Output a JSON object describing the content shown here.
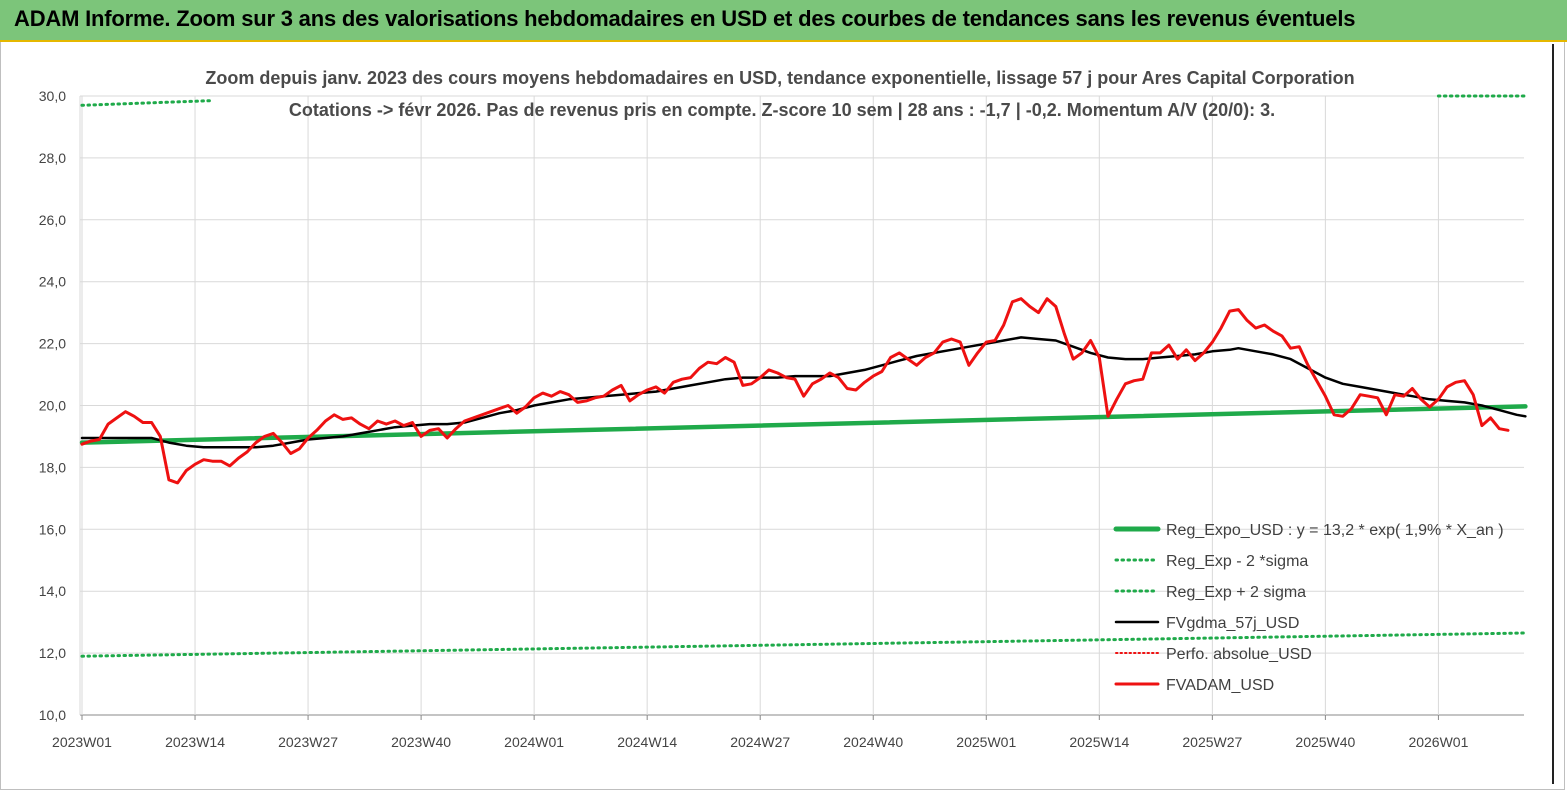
{
  "header": {
    "title": "ADAM Informe. Zoom sur 3 ans des valorisations hebdomadaires en USD et des courbes de tendances sans les revenus éventuels"
  },
  "chart_data": {
    "type": "line",
    "title_line1": "Zoom depuis janv.  2023 des cours moyens  hebdomadaires en USD, tendance exponentielle, lissage 57  j pour Ares Capital Corporation",
    "title_line2": "Cotations -> févr 2026.  Pas de revenus pris en compte. Z-score 10 sem  | 28 ans : -1,7  | -0,2. Momentum A/V (20/0): 3.",
    "xlabel": "",
    "ylabel": "",
    "ylim": [
      10,
      30
    ],
    "yticks": [
      "10,0",
      "12,0",
      "14,0",
      "16,0",
      "18,0",
      "20,0",
      "22,0",
      "24,0",
      "26,0",
      "28,0",
      "30,0"
    ],
    "xtick_labels": [
      "2023W01",
      "2023W14",
      "2023W27",
      "2023W40",
      "2024W01",
      "2024W14",
      "2024W27",
      "2024W40",
      "2025W01",
      "2025W14",
      "2025W27",
      "2025W40",
      "2026W01"
    ],
    "xtick_index": [
      0,
      13,
      26,
      39,
      52,
      65,
      78,
      91,
      104,
      117,
      130,
      143,
      156
    ],
    "n_weeks": 167,
    "grid": true,
    "legend_position": "bottom-right",
    "colors": {
      "fvadam": "#ee1111",
      "gdma": "#000000",
      "reg": "#1faa4a",
      "sigma": "#1faa4a",
      "perfo": "#ee1111",
      "grid": "#d9d9d9",
      "axis": "#888888"
    },
    "series": [
      {
        "name": "Reg_Expo_USD : y = 13,2 * exp( 1,9% *  X_an )",
        "style": "thick",
        "points": [
          [
            0,
            18.8
          ],
          [
            166,
            19.97
          ]
        ]
      },
      {
        "name": "Reg_Exp - 2 *sigma",
        "style": "dotted",
        "points": [
          [
            0,
            11.9
          ],
          [
            166,
            12.65
          ]
        ]
      },
      {
        "name": "Reg_Exp + 2 sigma",
        "style": "dotted",
        "points": [
          [
            0,
            29.7
          ],
          [
            15,
            29.85
          ],
          [
            156,
            30.0
          ],
          [
            166,
            30.0
          ]
        ]
      },
      {
        "name": "FVgdma_57j_USD",
        "style": "solid",
        "points": [
          [
            0,
            18.95
          ],
          [
            3,
            18.95
          ],
          [
            6,
            18.95
          ],
          [
            8,
            18.95
          ],
          [
            10,
            18.8
          ],
          [
            12,
            18.7
          ],
          [
            14,
            18.65
          ],
          [
            17,
            18.65
          ],
          [
            20,
            18.65
          ],
          [
            22,
            18.7
          ],
          [
            24,
            18.8
          ],
          [
            26,
            18.9
          ],
          [
            28,
            18.95
          ],
          [
            30,
            19.0
          ],
          [
            32,
            19.1
          ],
          [
            34,
            19.2
          ],
          [
            36,
            19.3
          ],
          [
            38,
            19.35
          ],
          [
            40,
            19.4
          ],
          [
            42,
            19.4
          ],
          [
            44,
            19.45
          ],
          [
            46,
            19.6
          ],
          [
            48,
            19.75
          ],
          [
            50,
            19.85
          ],
          [
            52,
            20.0
          ],
          [
            54,
            20.1
          ],
          [
            56,
            20.2
          ],
          [
            58,
            20.25
          ],
          [
            60,
            20.3
          ],
          [
            62,
            20.35
          ],
          [
            64,
            20.4
          ],
          [
            66,
            20.45
          ],
          [
            68,
            20.55
          ],
          [
            70,
            20.65
          ],
          [
            72,
            20.75
          ],
          [
            74,
            20.85
          ],
          [
            76,
            20.9
          ],
          [
            78,
            20.9
          ],
          [
            80,
            20.9
          ],
          [
            82,
            20.95
          ],
          [
            84,
            20.95
          ],
          [
            86,
            20.95
          ],
          [
            88,
            21.05
          ],
          [
            90,
            21.15
          ],
          [
            92,
            21.3
          ],
          [
            94,
            21.45
          ],
          [
            96,
            21.6
          ],
          [
            98,
            21.7
          ],
          [
            100,
            21.8
          ],
          [
            102,
            21.9
          ],
          [
            104,
            22.0
          ],
          [
            106,
            22.1
          ],
          [
            108,
            22.2
          ],
          [
            110,
            22.15
          ],
          [
            112,
            22.1
          ],
          [
            114,
            21.9
          ],
          [
            116,
            21.7
          ],
          [
            118,
            21.55
          ],
          [
            120,
            21.5
          ],
          [
            122,
            21.5
          ],
          [
            124,
            21.55
          ],
          [
            126,
            21.6
          ],
          [
            128,
            21.65
          ],
          [
            130,
            21.75
          ],
          [
            132,
            21.8
          ],
          [
            133,
            21.85
          ],
          [
            135,
            21.75
          ],
          [
            137,
            21.65
          ],
          [
            139,
            21.5
          ],
          [
            141,
            21.2
          ],
          [
            143,
            20.9
          ],
          [
            145,
            20.7
          ],
          [
            147,
            20.6
          ],
          [
            149,
            20.5
          ],
          [
            151,
            20.4
          ],
          [
            153,
            20.3
          ],
          [
            155,
            20.2
          ],
          [
            157,
            20.15
          ],
          [
            159,
            20.1
          ],
          [
            161,
            20.0
          ],
          [
            163,
            19.85
          ],
          [
            165,
            19.7
          ],
          [
            166,
            19.65
          ]
        ]
      },
      {
        "name": "Perfo. absolue_USD",
        "style": "dotted",
        "points": []
      },
      {
        "name": "FVADAM_USD",
        "style": "solid",
        "points": [
          [
            0,
            18.75
          ],
          [
            1,
            18.85
          ],
          [
            2,
            18.9
          ],
          [
            3,
            19.4
          ],
          [
            4,
            19.6
          ],
          [
            5,
            19.8
          ],
          [
            6,
            19.65
          ],
          [
            7,
            19.45
          ],
          [
            8,
            19.45
          ],
          [
            9,
            19.0
          ],
          [
            10,
            17.6
          ],
          [
            11,
            17.5
          ],
          [
            12,
            17.9
          ],
          [
            13,
            18.1
          ],
          [
            14,
            18.25
          ],
          [
            15,
            18.2
          ],
          [
            16,
            18.2
          ],
          [
            17,
            18.05
          ],
          [
            18,
            18.3
          ],
          [
            19,
            18.5
          ],
          [
            20,
            18.8
          ],
          [
            21,
            19.0
          ],
          [
            22,
            19.1
          ],
          [
            23,
            18.8
          ],
          [
            24,
            18.45
          ],
          [
            25,
            18.6
          ],
          [
            26,
            18.95
          ],
          [
            27,
            19.2
          ],
          [
            28,
            19.5
          ],
          [
            29,
            19.7
          ],
          [
            30,
            19.55
          ],
          [
            31,
            19.6
          ],
          [
            32,
            19.4
          ],
          [
            33,
            19.25
          ],
          [
            34,
            19.5
          ],
          [
            35,
            19.4
          ],
          [
            36,
            19.5
          ],
          [
            37,
            19.35
          ],
          [
            38,
            19.45
          ],
          [
            39,
            19.0
          ],
          [
            40,
            19.2
          ],
          [
            41,
            19.25
          ],
          [
            42,
            18.95
          ],
          [
            43,
            19.25
          ],
          [
            44,
            19.5
          ],
          [
            45,
            19.6
          ],
          [
            46,
            19.7
          ],
          [
            47,
            19.8
          ],
          [
            48,
            19.9
          ],
          [
            49,
            20.0
          ],
          [
            50,
            19.75
          ],
          [
            51,
            19.95
          ],
          [
            52,
            20.25
          ],
          [
            53,
            20.4
          ],
          [
            54,
            20.3
          ],
          [
            55,
            20.45
          ],
          [
            56,
            20.35
          ],
          [
            57,
            20.1
          ],
          [
            58,
            20.15
          ],
          [
            59,
            20.25
          ],
          [
            60,
            20.3
          ],
          [
            61,
            20.5
          ],
          [
            62,
            20.65
          ],
          [
            63,
            20.15
          ],
          [
            64,
            20.35
          ],
          [
            65,
            20.5
          ],
          [
            66,
            20.6
          ],
          [
            67,
            20.4
          ],
          [
            68,
            20.75
          ],
          [
            69,
            20.85
          ],
          [
            70,
            20.9
          ],
          [
            71,
            21.2
          ],
          [
            72,
            21.4
          ],
          [
            73,
            21.35
          ],
          [
            74,
            21.55
          ],
          [
            75,
            21.4
          ],
          [
            76,
            20.65
          ],
          [
            77,
            20.7
          ],
          [
            78,
            20.9
          ],
          [
            79,
            21.15
          ],
          [
            80,
            21.05
          ],
          [
            81,
            20.9
          ],
          [
            82,
            20.85
          ],
          [
            83,
            20.3
          ],
          [
            84,
            20.7
          ],
          [
            85,
            20.85
          ],
          [
            86,
            21.05
          ],
          [
            87,
            20.9
          ],
          [
            88,
            20.55
          ],
          [
            89,
            20.5
          ],
          [
            90,
            20.75
          ],
          [
            91,
            20.95
          ],
          [
            92,
            21.1
          ],
          [
            93,
            21.55
          ],
          [
            94,
            21.7
          ],
          [
            95,
            21.5
          ],
          [
            96,
            21.3
          ],
          [
            97,
            21.55
          ],
          [
            98,
            21.7
          ],
          [
            99,
            22.05
          ],
          [
            100,
            22.15
          ],
          [
            101,
            22.05
          ],
          [
            102,
            21.3
          ],
          [
            103,
            21.7
          ],
          [
            104,
            22.05
          ],
          [
            105,
            22.1
          ],
          [
            106,
            22.6
          ],
          [
            107,
            23.35
          ],
          [
            108,
            23.45
          ],
          [
            109,
            23.2
          ],
          [
            110,
            23.0
          ],
          [
            111,
            23.45
          ],
          [
            112,
            23.2
          ],
          [
            113,
            22.3
          ],
          [
            114,
            21.5
          ],
          [
            115,
            21.7
          ],
          [
            116,
            22.1
          ],
          [
            117,
            21.55
          ],
          [
            118,
            19.65
          ],
          [
            119,
            20.2
          ],
          [
            120,
            20.7
          ],
          [
            121,
            20.8
          ],
          [
            122,
            20.85
          ],
          [
            123,
            21.7
          ],
          [
            124,
            21.7
          ],
          [
            125,
            21.95
          ],
          [
            126,
            21.5
          ],
          [
            127,
            21.8
          ],
          [
            128,
            21.45
          ],
          [
            129,
            21.7
          ],
          [
            130,
            22.05
          ],
          [
            131,
            22.5
          ],
          [
            132,
            23.05
          ],
          [
            133,
            23.1
          ],
          [
            134,
            22.75
          ],
          [
            135,
            22.5
          ],
          [
            136,
            22.6
          ],
          [
            137,
            22.4
          ],
          [
            138,
            22.25
          ],
          [
            139,
            21.85
          ],
          [
            140,
            21.9
          ],
          [
            141,
            21.3
          ],
          [
            142,
            20.8
          ],
          [
            143,
            20.3
          ],
          [
            144,
            19.7
          ],
          [
            145,
            19.65
          ],
          [
            146,
            19.9
          ],
          [
            147,
            20.35
          ],
          [
            148,
            20.3
          ],
          [
            149,
            20.25
          ],
          [
            150,
            19.7
          ],
          [
            151,
            20.35
          ],
          [
            152,
            20.3
          ],
          [
            153,
            20.55
          ],
          [
            154,
            20.2
          ],
          [
            155,
            19.95
          ],
          [
            156,
            20.2
          ],
          [
            157,
            20.6
          ],
          [
            158,
            20.75
          ],
          [
            159,
            20.8
          ],
          [
            160,
            20.35
          ],
          [
            161,
            19.35
          ],
          [
            162,
            19.6
          ],
          [
            163,
            19.25
          ],
          [
            164,
            19.2
          ]
        ]
      }
    ]
  }
}
